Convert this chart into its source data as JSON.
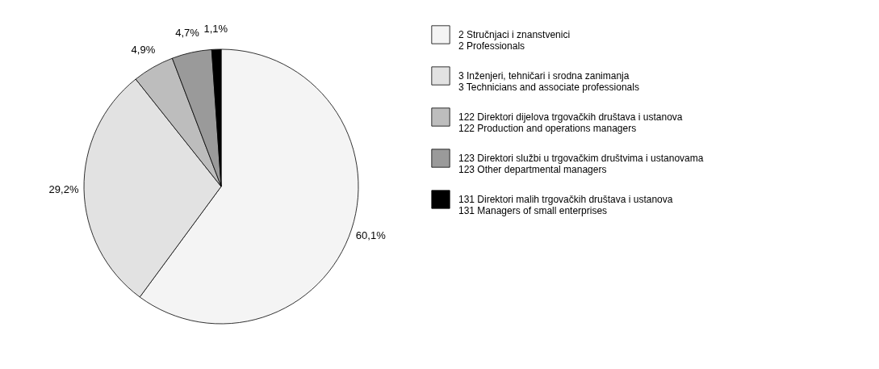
{
  "chart_data": {
    "type": "pie",
    "categories": [
      "2 Stručnjaci i znanstvenici\n2 Professionals",
      "3 Inženjeri, tehničari i srodna zanimanja\n3 Technicians and associate professionals",
      "122 Direktori dijelova trgovačkih društava i ustanova\n122 Production and operations managers",
      "123 Direktori službi u trgovačkim društvima i ustanovama\n123 Other departmental managers",
      "131 Direktori malih trgovačkih društava i ustanova\n131 Managers of small enterprises"
    ],
    "values": [
      60.1,
      29.2,
      4.9,
      4.7,
      1.1
    ],
    "value_labels": [
      "60,1%",
      "29,2%",
      "4,9%",
      "4,7%",
      "1,1%"
    ],
    "colors": [
      "#f4f4f4",
      "#e2e2e2",
      "#bdbdbd",
      "#9a9a9a",
      "#000000"
    ],
    "legend": "right"
  }
}
